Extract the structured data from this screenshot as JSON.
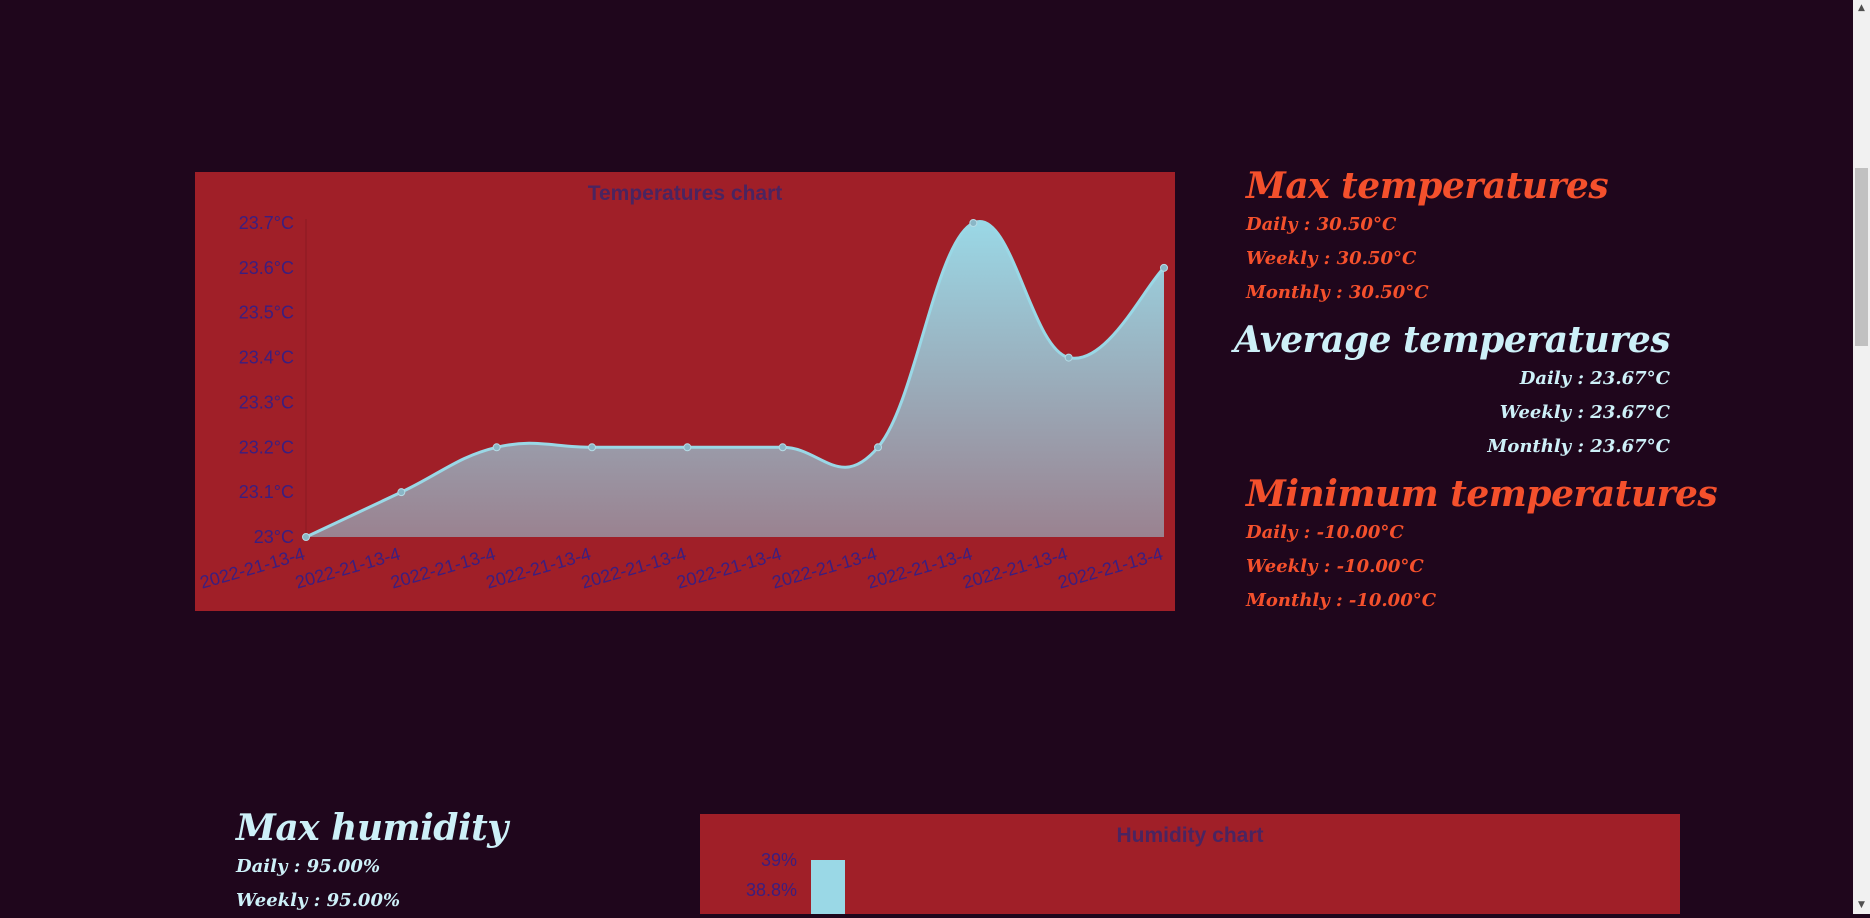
{
  "temperature_chart": {
    "chart_data": {
      "type": "area",
      "title": "Temperatures chart",
      "categories": [
        "2022-21-13-4",
        "2022-21-13-4",
        "2022-21-13-4",
        "2022-21-13-4",
        "2022-21-13-4",
        "2022-21-13-4",
        "2022-21-13-4",
        "2022-21-13-4",
        "2022-21-13-4",
        "2022-21-13-4"
      ],
      "values": [
        23.0,
        23.1,
        23.2,
        23.2,
        23.2,
        23.2,
        23.2,
        23.7,
        23.4,
        23.6
      ],
      "ylim": [
        23.0,
        23.7
      ],
      "yticks": [
        23.0,
        23.1,
        23.2,
        23.3,
        23.4,
        23.5,
        23.6,
        23.7
      ],
      "ytick_labels": [
        "23°C",
        "23.1°C",
        "23.2°C",
        "23.3°C",
        "23.4°C",
        "23.5°C",
        "23.6°C",
        "23.7°C"
      ],
      "colors": {
        "background": "#a01f28",
        "line": "#9ad8e6",
        "fill_top": "#9ad8e6",
        "fill_bottom": "#9a8290",
        "tick_text": "#3a1e80",
        "title": "#4a2460"
      }
    }
  },
  "max_temperatures": {
    "title": "Max temperatures",
    "daily": "Daily : 30.50°C",
    "weekly": "Weekly : 30.50°C",
    "monthly": "Monthly : 30.50°C"
  },
  "average_temperatures": {
    "title": "Average temperatures",
    "daily": "Daily : 23.67°C",
    "weekly": "Weekly : 23.67°C",
    "monthly": "Monthly : 23.67°C"
  },
  "minimum_temperatures": {
    "title": "Minimum temperatures",
    "daily": "Daily : -10.00°C",
    "weekly": "Weekly : -10.00°C",
    "monthly": "Monthly : -10.00°C"
  },
  "max_humidity": {
    "title": "Max humidity",
    "daily": "Daily : 95.00%",
    "weekly": "Weekly : 95.00%"
  },
  "humidity_chart": {
    "chart_data": {
      "type": "bar",
      "title": "Humidity chart",
      "values": [
        39
      ],
      "ylim_top": 39,
      "ytick_labels": [
        "39%",
        "38.8%"
      ],
      "colors": {
        "bar": "#9ad8e6",
        "tick_text": "#3a1e80",
        "title": "#4a2460"
      }
    }
  },
  "colors": {
    "orange_accent": "#f4502c",
    "light_accent": "#cdf0f8",
    "page_background": "#1f061c"
  }
}
